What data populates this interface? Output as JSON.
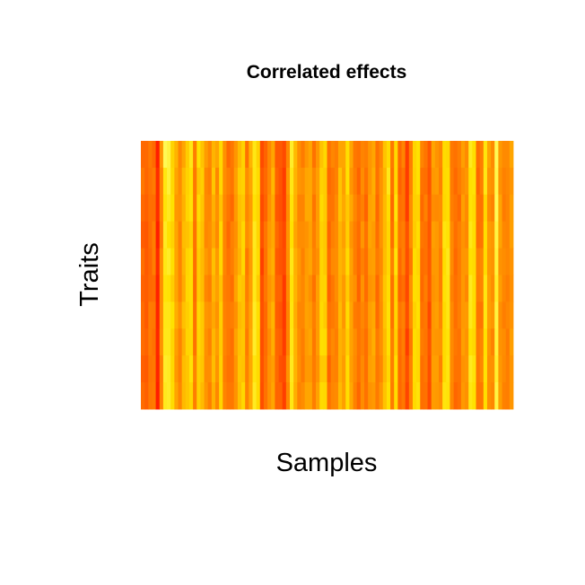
{
  "chart_data": {
    "type": "heatmap",
    "title": "Correlated effects",
    "xlabel": "Samples",
    "ylabel": "Traits",
    "n_rows": 10,
    "n_cols": 100,
    "value_range": [
      0,
      1
    ],
    "color_scale": [
      "#ff0000",
      "#ff4b00",
      "#ff9600",
      "#ffe100",
      "#ffff6a"
    ],
    "color_scale_name": "heat",
    "axes_shown": false,
    "grid": false,
    "legend": "none",
    "values": [
      [
        0.35,
        0.35,
        0.4,
        0.35,
        0.1,
        0.5,
        0.95,
        0.9,
        0.7,
        0.6,
        0.45,
        0.55,
        0.68,
        0.8,
        0.42,
        0.75,
        0.65,
        0.52,
        0.45,
        0.6,
        0.55,
        0.72,
        0.48,
        0.35,
        0.4,
        0.5,
        0.62,
        0.7,
        0.38,
        0.6,
        0.8,
        0.7,
        0.25,
        0.33,
        0.45,
        0.55,
        0.3,
        0.3,
        0.25,
        0.45,
        0.85,
        0.62,
        0.48,
        0.41,
        0.5,
        0.55,
        0.38,
        0.5,
        0.65,
        0.72,
        0.38,
        0.45,
        0.42,
        0.55,
        0.55,
        0.74,
        0.55,
        0.4,
        0.38,
        0.44,
        0.42,
        0.5,
        0.55,
        0.38,
        0.45,
        0.65,
        0.73,
        0.4,
        0.72,
        0.35,
        0.44,
        0.2,
        0.42,
        0.71,
        0.75,
        0.44,
        0.39,
        0.29,
        0.55,
        0.49,
        0.45,
        0.73,
        0.72,
        0.4,
        0.38,
        0.42,
        0.53,
        0.46,
        0.82,
        0.74,
        0.37,
        0.42,
        0.78,
        0.55,
        0.46,
        0.95,
        0.51,
        0.46,
        0.46,
        0.55
      ],
      [
        0.4,
        0.34,
        0.38,
        0.41,
        0.15,
        0.45,
        0.79,
        0.88,
        0.72,
        0.55,
        0.47,
        0.62,
        0.7,
        0.75,
        0.4,
        0.66,
        0.69,
        0.45,
        0.42,
        0.66,
        0.45,
        0.72,
        0.47,
        0.42,
        0.39,
        0.53,
        0.68,
        0.7,
        0.47,
        0.55,
        0.79,
        0.73,
        0.29,
        0.35,
        0.45,
        0.61,
        0.33,
        0.28,
        0.2,
        0.5,
        0.8,
        0.6,
        0.5,
        0.48,
        0.55,
        0.56,
        0.45,
        0.53,
        0.7,
        0.68,
        0.35,
        0.39,
        0.43,
        0.65,
        0.53,
        0.75,
        0.5,
        0.42,
        0.33,
        0.47,
        0.38,
        0.5,
        0.58,
        0.38,
        0.49,
        0.6,
        0.81,
        0.38,
        0.72,
        0.33,
        0.39,
        0.2,
        0.43,
        0.7,
        0.75,
        0.38,
        0.37,
        0.28,
        0.51,
        0.52,
        0.43,
        0.73,
        0.74,
        0.41,
        0.35,
        0.41,
        0.47,
        0.5,
        0.75,
        0.76,
        0.34,
        0.42,
        0.8,
        0.5,
        0.48,
        0.93,
        0.49,
        0.43,
        0.45,
        0.5
      ],
      [
        0.35,
        0.32,
        0.37,
        0.37,
        0.15,
        0.45,
        0.77,
        0.82,
        0.75,
        0.51,
        0.49,
        0.59,
        0.71,
        0.76,
        0.4,
        0.73,
        0.66,
        0.46,
        0.45,
        0.59,
        0.48,
        0.65,
        0.45,
        0.39,
        0.35,
        0.51,
        0.64,
        0.67,
        0.45,
        0.52,
        0.76,
        0.71,
        0.25,
        0.33,
        0.48,
        0.57,
        0.29,
        0.27,
        0.21,
        0.47,
        0.77,
        0.59,
        0.44,
        0.44,
        0.56,
        0.56,
        0.39,
        0.52,
        0.73,
        0.68,
        0.38,
        0.39,
        0.46,
        0.65,
        0.56,
        0.67,
        0.56,
        0.45,
        0.38,
        0.43,
        0.33,
        0.54,
        0.56,
        0.35,
        0.49,
        0.62,
        0.74,
        0.35,
        0.77,
        0.37,
        0.39,
        0.2,
        0.47,
        0.69,
        0.7,
        0.35,
        0.43,
        0.3,
        0.47,
        0.46,
        0.47,
        0.72,
        0.74,
        0.42,
        0.39,
        0.35,
        0.53,
        0.46,
        0.76,
        0.73,
        0.38,
        0.38,
        0.71,
        0.47,
        0.43,
        0.95,
        0.55,
        0.41,
        0.44,
        0.53
      ],
      [
        0.31,
        0.29,
        0.36,
        0.42,
        0.1,
        0.42,
        0.83,
        0.75,
        0.7,
        0.55,
        0.43,
        0.63,
        0.65,
        0.7,
        0.38,
        0.7,
        0.64,
        0.45,
        0.47,
        0.56,
        0.46,
        0.72,
        0.44,
        0.35,
        0.43,
        0.48,
        0.63,
        0.72,
        0.47,
        0.53,
        0.82,
        0.71,
        0.27,
        0.39,
        0.51,
        0.56,
        0.35,
        0.29,
        0.24,
        0.49,
        0.75,
        0.55,
        0.47,
        0.47,
        0.49,
        0.54,
        0.42,
        0.52,
        0.7,
        0.67,
        0.34,
        0.43,
        0.46,
        0.6,
        0.53,
        0.69,
        0.5,
        0.42,
        0.36,
        0.5,
        0.38,
        0.55,
        0.52,
        0.37,
        0.49,
        0.62,
        0.72,
        0.37,
        0.71,
        0.39,
        0.42,
        0.27,
        0.47,
        0.68,
        0.74,
        0.39,
        0.38,
        0.29,
        0.53,
        0.51,
        0.45,
        0.78,
        0.76,
        0.46,
        0.37,
        0.42,
        0.49,
        0.45,
        0.8,
        0.74,
        0.37,
        0.39,
        0.74,
        0.52,
        0.5,
        0.91,
        0.55,
        0.45,
        0.44,
        0.53
      ],
      [
        0.37,
        0.3,
        0.34,
        0.42,
        0.14,
        0.48,
        0.8,
        0.84,
        0.74,
        0.55,
        0.44,
        0.6,
        0.71,
        0.74,
        0.37,
        0.68,
        0.62,
        0.51,
        0.46,
        0.64,
        0.51,
        0.72,
        0.44,
        0.38,
        0.42,
        0.51,
        0.6,
        0.72,
        0.4,
        0.52,
        0.81,
        0.73,
        0.21,
        0.38,
        0.53,
        0.58,
        0.3,
        0.28,
        0.25,
        0.48,
        0.8,
        0.59,
        0.51,
        0.43,
        0.52,
        0.55,
        0.44,
        0.48,
        0.71,
        0.67,
        0.36,
        0.46,
        0.47,
        0.6,
        0.56,
        0.73,
        0.54,
        0.42,
        0.35,
        0.43,
        0.37,
        0.52,
        0.53,
        0.41,
        0.46,
        0.63,
        0.72,
        0.43,
        0.77,
        0.35,
        0.43,
        0.26,
        0.4,
        0.74,
        0.71,
        0.36,
        0.38,
        0.3,
        0.51,
        0.51,
        0.42,
        0.74,
        0.81,
        0.46,
        0.35,
        0.41,
        0.5,
        0.5,
        0.75,
        0.73,
        0.43,
        0.45,
        0.73,
        0.51,
        0.49,
        0.89,
        0.49,
        0.47,
        0.45,
        0.49
      ],
      [
        0.33,
        0.31,
        0.35,
        0.36,
        0.11,
        0.48,
        0.77,
        0.76,
        0.68,
        0.55,
        0.44,
        0.57,
        0.72,
        0.74,
        0.36,
        0.68,
        0.63,
        0.45,
        0.42,
        0.6,
        0.53,
        0.65,
        0.42,
        0.4,
        0.37,
        0.54,
        0.67,
        0.65,
        0.42,
        0.53,
        0.81,
        0.68,
        0.26,
        0.39,
        0.49,
        0.54,
        0.33,
        0.33,
        0.19,
        0.46,
        0.77,
        0.6,
        0.49,
        0.45,
        0.53,
        0.48,
        0.38,
        0.53,
        0.71,
        0.71,
        0.33,
        0.4,
        0.47,
        0.59,
        0.51,
        0.68,
        0.52,
        0.48,
        0.33,
        0.49,
        0.36,
        0.49,
        0.51,
        0.35,
        0.48,
        0.66,
        0.74,
        0.38,
        0.7,
        0.33,
        0.37,
        0.24,
        0.48,
        0.74,
        0.73,
        0.35,
        0.42,
        0.3,
        0.49,
        0.51,
        0.42,
        0.76,
        0.79,
        0.43,
        0.37,
        0.41,
        0.51,
        0.45,
        0.82,
        0.74,
        0.42,
        0.44,
        0.79,
        0.53,
        0.47,
        0.85,
        0.53,
        0.45,
        0.42,
        0.48
      ],
      [
        0.36,
        0.3,
        0.41,
        0.4,
        0.12,
        0.48,
        0.8,
        0.8,
        0.75,
        0.58,
        0.49,
        0.64,
        0.69,
        0.74,
        0.38,
        0.72,
        0.67,
        0.5,
        0.48,
        0.56,
        0.49,
        0.69,
        0.43,
        0.41,
        0.42,
        0.48,
        0.62,
        0.65,
        0.44,
        0.55,
        0.84,
        0.74,
        0.27,
        0.35,
        0.52,
        0.6,
        0.31,
        0.29,
        0.19,
        0.44,
        0.78,
        0.58,
        0.45,
        0.45,
        0.54,
        0.52,
        0.42,
        0.52,
        0.73,
        0.68,
        0.38,
        0.41,
        0.44,
        0.62,
        0.5,
        0.73,
        0.55,
        0.41,
        0.39,
        0.45,
        0.4,
        0.53,
        0.56,
        0.36,
        0.47,
        0.65,
        0.76,
        0.38,
        0.71,
        0.39,
        0.43,
        0.26,
        0.47,
        0.7,
        0.75,
        0.38,
        0.4,
        0.24,
        0.51,
        0.53,
        0.45,
        0.73,
        0.79,
        0.46,
        0.37,
        0.42,
        0.51,
        0.51,
        0.81,
        0.74,
        0.39,
        0.39,
        0.79,
        0.53,
        0.5,
        0.9,
        0.48,
        0.42,
        0.45,
        0.49
      ],
      [
        0.36,
        0.33,
        0.41,
        0.38,
        0.13,
        0.49,
        0.81,
        0.81,
        0.71,
        0.53,
        0.44,
        0.58,
        0.71,
        0.72,
        0.38,
        0.71,
        0.67,
        0.48,
        0.43,
        0.61,
        0.52,
        0.68,
        0.44,
        0.4,
        0.37,
        0.54,
        0.64,
        0.66,
        0.41,
        0.57,
        0.85,
        0.73,
        0.26,
        0.36,
        0.47,
        0.58,
        0.34,
        0.32,
        0.2,
        0.44,
        0.8,
        0.6,
        0.47,
        0.42,
        0.52,
        0.55,
        0.4,
        0.52,
        0.74,
        0.73,
        0.39,
        0.46,
        0.42,
        0.59,
        0.55,
        0.69,
        0.54,
        0.47,
        0.39,
        0.43,
        0.37,
        0.51,
        0.58,
        0.41,
        0.48,
        0.62,
        0.75,
        0.42,
        0.69,
        0.36,
        0.42,
        0.2,
        0.4,
        0.74,
        0.72,
        0.41,
        0.39,
        0.28,
        0.51,
        0.5,
        0.49,
        0.73,
        0.77,
        0.46,
        0.4,
        0.38,
        0.53,
        0.49,
        0.75,
        0.72,
        0.41,
        0.44,
        0.75,
        0.5,
        0.43,
        0.89,
        0.49,
        0.47,
        0.41,
        0.53
      ],
      [
        0.32,
        0.3,
        0.39,
        0.4,
        0.12,
        0.43,
        0.85,
        0.83,
        0.72,
        0.51,
        0.43,
        0.63,
        0.66,
        0.76,
        0.44,
        0.69,
        0.66,
        0.47,
        0.47,
        0.63,
        0.49,
        0.7,
        0.42,
        0.38,
        0.38,
        0.5,
        0.66,
        0.65,
        0.43,
        0.56,
        0.78,
        0.73,
        0.27,
        0.37,
        0.49,
        0.53,
        0.35,
        0.27,
        0.25,
        0.49,
        0.82,
        0.6,
        0.48,
        0.41,
        0.51,
        0.51,
        0.41,
        0.49,
        0.67,
        0.67,
        0.33,
        0.44,
        0.43,
        0.59,
        0.52,
        0.74,
        0.53,
        0.46,
        0.38,
        0.46,
        0.37,
        0.53,
        0.55,
        0.4,
        0.45,
        0.61,
        0.72,
        0.42,
        0.74,
        0.35,
        0.41,
        0.26,
        0.43,
        0.74,
        0.72,
        0.37,
        0.4,
        0.26,
        0.53,
        0.53,
        0.43,
        0.73,
        0.78,
        0.46,
        0.38,
        0.38,
        0.49,
        0.5,
        0.82,
        0.77,
        0.4,
        0.45,
        0.76,
        0.48,
        0.48,
        0.86,
        0.51,
        0.46,
        0.42,
        0.5
      ],
      [
        0.36,
        0.32,
        0.4,
        0.41,
        0.1,
        0.44,
        0.82,
        0.84,
        0.73,
        0.55,
        0.45,
        0.62,
        0.66,
        0.71,
        0.42,
        0.69,
        0.62,
        0.5,
        0.42,
        0.59,
        0.45,
        0.71,
        0.44,
        0.4,
        0.4,
        0.49,
        0.64,
        0.72,
        0.44,
        0.57,
        0.83,
        0.73,
        0.26,
        0.38,
        0.48,
        0.55,
        0.33,
        0.33,
        0.21,
        0.45,
        0.8,
        0.58,
        0.44,
        0.47,
        0.55,
        0.55,
        0.42,
        0.54,
        0.73,
        0.72,
        0.38,
        0.45,
        0.46,
        0.62,
        0.53,
        0.74,
        0.56,
        0.43,
        0.34,
        0.47,
        0.38,
        0.49,
        0.51,
        0.41,
        0.5,
        0.65,
        0.75,
        0.41,
        0.73,
        0.35,
        0.4,
        0.23,
        0.43,
        0.73,
        0.77,
        0.37,
        0.38,
        0.25,
        0.52,
        0.51,
        0.48,
        0.78,
        0.77,
        0.45,
        0.34,
        0.37,
        0.51,
        0.48,
        0.79,
        0.75,
        0.39,
        0.4,
        0.74,
        0.48,
        0.45,
        0.91,
        0.53,
        0.43,
        0.42,
        0.5
      ]
    ]
  }
}
